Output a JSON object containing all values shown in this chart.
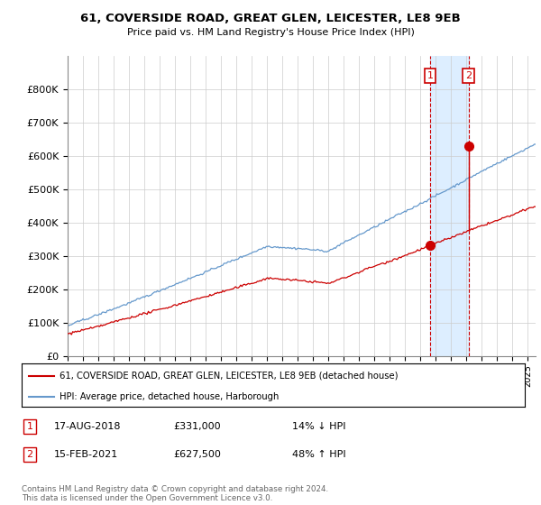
{
  "title": "61, COVERSIDE ROAD, GREAT GLEN, LEICESTER, LE8 9EB",
  "subtitle": "Price paid vs. HM Land Registry's House Price Index (HPI)",
  "legend_line1": "61, COVERSIDE ROAD, GREAT GLEN, LEICESTER, LE8 9EB (detached house)",
  "legend_line2": "HPI: Average price, detached house, Harborough",
  "footer": "Contains HM Land Registry data © Crown copyright and database right 2024.\nThis data is licensed under the Open Government Licence v3.0.",
  "transaction1_date": "17-AUG-2018",
  "transaction1_price": "£331,000",
  "transaction1_hpi": "14% ↓ HPI",
  "transaction2_date": "15-FEB-2021",
  "transaction2_price": "£627,500",
  "transaction2_hpi": "48% ↑ HPI",
  "red_color": "#cc0000",
  "blue_color": "#6699cc",
  "shaded_color": "#ddeeff",
  "ylim": [
    0,
    900000
  ],
  "yticks": [
    0,
    100000,
    200000,
    300000,
    400000,
    500000,
    600000,
    700000,
    800000
  ],
  "ytick_labels": [
    "£0",
    "£100K",
    "£200K",
    "£300K",
    "£400K",
    "£500K",
    "£600K",
    "£700K",
    "£800K"
  ],
  "t1_x": 2018.625,
  "t1_y": 331000,
  "t2_x": 2021.125,
  "t2_y": 627500,
  "xlim_left": 1995.0,
  "xlim_right": 2025.5
}
